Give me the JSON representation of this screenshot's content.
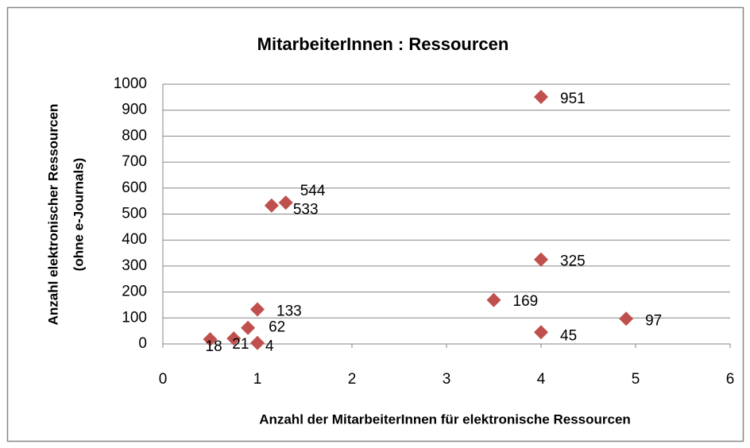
{
  "chart_data": {
    "type": "scatter",
    "title": "MitarbeiterInnen : Ressourcen",
    "x_label": "Anzahl der MitarbeiterInnen für elektronische Ressourcen",
    "y_label": [
      "Anzahl elektronischer Ressourcen",
      "(ohne e-Journals)"
    ],
    "series": [
      {
        "name": "Ressourcen",
        "color": "#c0504d",
        "x": [
          4,
          1.3,
          1.15,
          4,
          3.5,
          4.9,
          4,
          1,
          0.9,
          0.75,
          0.5,
          1
        ],
        "values": [
          951,
          544,
          533,
          325,
          169,
          97,
          45,
          133,
          62,
          21,
          18,
          4
        ]
      }
    ],
    "xlim": [
      0,
      6
    ],
    "xticks": [
      0,
      1,
      2,
      3,
      4,
      5,
      6
    ],
    "ylim": [
      0,
      1000
    ],
    "yticks": [
      0,
      100,
      200,
      300,
      400,
      500,
      600,
      700,
      800,
      900,
      1000
    ],
    "grid": true
  }
}
